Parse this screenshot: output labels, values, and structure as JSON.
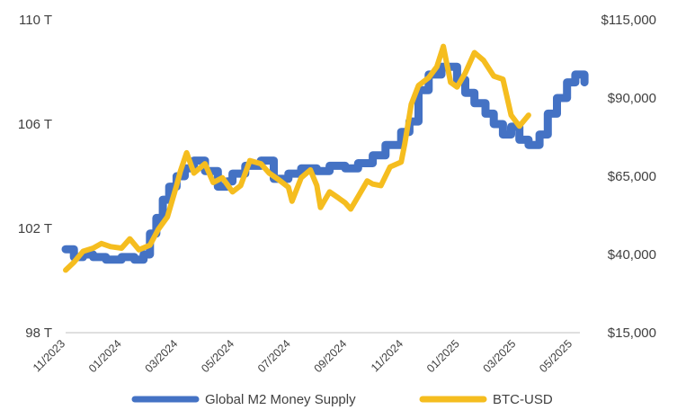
{
  "chart_data": {
    "type": "line",
    "grid": false,
    "legend_placement": "bottom",
    "y_left": {
      "ticks": [
        "98 T",
        "102 T",
        "106 T",
        "110 T"
      ],
      "min": 98,
      "max": 110
    },
    "y_right": {
      "ticks": [
        "$15,000",
        "$40,000",
        "$65,000",
        "$90,000",
        "$115,000"
      ],
      "min": 15000,
      "max": 115000
    },
    "x_ticks": [
      "11/2023",
      "01/2024",
      "03/2024",
      "05/2024",
      "07/2024",
      "09/2024",
      "11/2024",
      "01/2025",
      "03/2025",
      "05/2025"
    ],
    "series": [
      {
        "name": "Global M2 Money Supply",
        "axis": "left",
        "color": "#4472C4",
        "x": [
          "2023-11-01",
          "2023-11-10",
          "2023-11-20",
          "2023-12-01",
          "2023-12-15",
          "2024-01-01",
          "2024-01-15",
          "2024-01-25",
          "2024-02-01",
          "2024-02-08",
          "2024-02-15",
          "2024-02-22",
          "2024-03-01",
          "2024-03-10",
          "2024-03-20",
          "2024-04-01",
          "2024-04-15",
          "2024-04-25",
          "2024-05-01",
          "2024-05-15",
          "2024-06-01",
          "2024-06-15",
          "2024-07-01",
          "2024-07-15",
          "2024-08-01",
          "2024-08-15",
          "2024-09-01",
          "2024-09-15",
          "2024-10-01",
          "2024-10-15",
          "2024-11-01",
          "2024-11-10",
          "2024-11-20",
          "2024-12-01",
          "2024-12-15",
          "2025-01-01",
          "2025-01-10",
          "2025-01-20",
          "2025-02-01",
          "2025-02-10",
          "2025-02-20",
          "2025-03-01",
          "2025-03-10",
          "2025-03-20",
          "2025-04-01",
          "2025-04-10",
          "2025-04-20",
          "2025-05-01",
          "2025-05-10",
          "2025-05-20"
        ],
        "values": [
          101.2,
          100.9,
          101.0,
          100.9,
          100.8,
          100.9,
          100.8,
          101.0,
          101.8,
          102.4,
          103.1,
          103.6,
          104.0,
          104.3,
          104.6,
          104.2,
          103.6,
          103.8,
          104.1,
          104.4,
          104.6,
          103.9,
          104.1,
          104.3,
          104.2,
          104.4,
          104.3,
          104.5,
          104.8,
          105.2,
          105.7,
          106.1,
          107.3,
          107.9,
          108.2,
          107.7,
          107.2,
          106.8,
          106.4,
          106.0,
          105.6,
          105.9,
          105.4,
          105.2,
          105.6,
          106.4,
          107.0,
          107.6,
          107.9,
          107.6
        ]
      },
      {
        "name": "BTC-USD",
        "axis": "right",
        "color": "#F5BD1F",
        "x": [
          "2023-11-01",
          "2023-11-10",
          "2023-11-20",
          "2023-12-01",
          "2023-12-10",
          "2023-12-20",
          "2024-01-01",
          "2024-01-10",
          "2024-01-20",
          "2024-02-01",
          "2024-02-10",
          "2024-02-20",
          "2024-03-01",
          "2024-03-05",
          "2024-03-12",
          "2024-03-20",
          "2024-04-01",
          "2024-04-10",
          "2024-04-20",
          "2024-05-01",
          "2024-05-10",
          "2024-05-20",
          "2024-06-01",
          "2024-06-10",
          "2024-06-20",
          "2024-07-01",
          "2024-07-05",
          "2024-07-15",
          "2024-07-25",
          "2024-08-01",
          "2024-08-05",
          "2024-08-15",
          "2024-08-25",
          "2024-09-01",
          "2024-09-07",
          "2024-09-15",
          "2024-09-25",
          "2024-10-01",
          "2024-10-10",
          "2024-10-20",
          "2024-11-01",
          "2024-11-05",
          "2024-11-12",
          "2024-11-20",
          "2024-12-01",
          "2024-12-10",
          "2024-12-17",
          "2024-12-25",
          "2025-01-01",
          "2025-01-10",
          "2025-01-20",
          "2025-01-30",
          "2025-02-10",
          "2025-02-20",
          "2025-03-01",
          "2025-03-10",
          "2025-03-20"
        ],
        "values": [
          35000,
          37500,
          41000,
          42000,
          43500,
          42500,
          42000,
          45000,
          41500,
          43000,
          48000,
          52000,
          62000,
          66500,
          72500,
          66000,
          69000,
          63000,
          64500,
          60000,
          62000,
          70000,
          69000,
          66000,
          64000,
          61500,
          57000,
          64500,
          67000,
          62000,
          55000,
          60000,
          58000,
          56500,
          54500,
          58500,
          63500,
          62500,
          62000,
          68000,
          69500,
          75500,
          88000,
          94000,
          96500,
          100000,
          106500,
          95000,
          93500,
          98000,
          104500,
          102000,
          97000,
          96000,
          84500,
          81000,
          84500
        ]
      }
    ]
  },
  "legend": {
    "m2_label": "Global M2 Money Supply",
    "btc_label": "BTC-USD"
  }
}
